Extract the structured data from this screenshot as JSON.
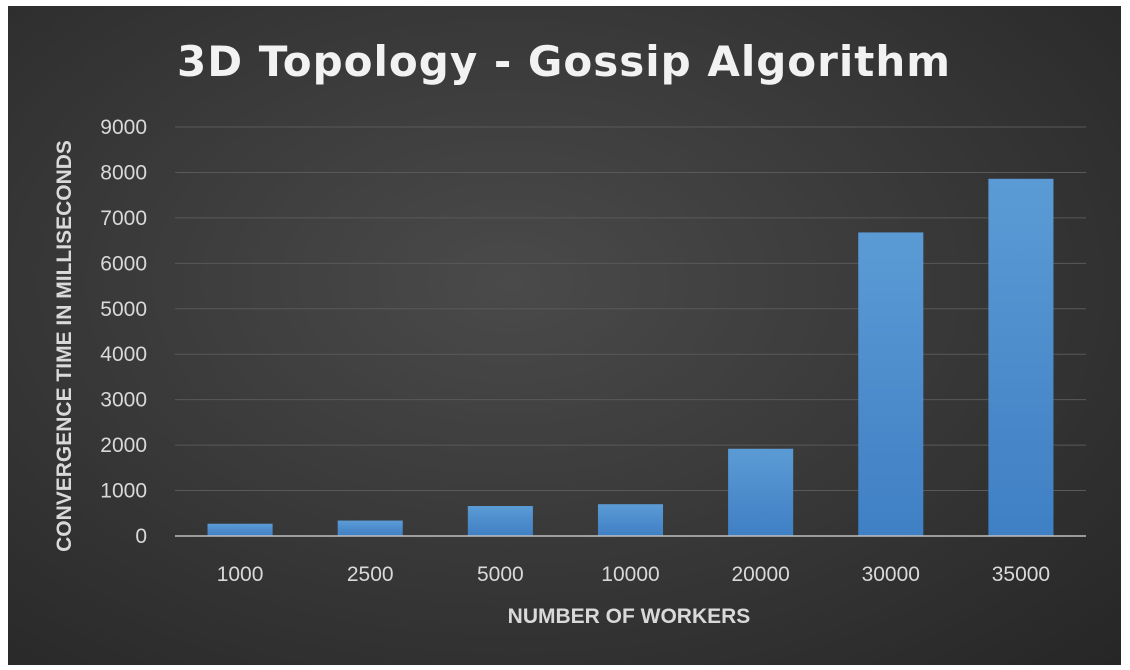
{
  "chart_data": {
    "type": "bar",
    "title": "3D Topology - Gossip Algorithm",
    "xlabel": "NUMBER OF WORKERS",
    "ylabel": "CONVERGENCE TIME IN MILLISECONDS",
    "categories": [
      "1000",
      "2500",
      "5000",
      "10000",
      "20000",
      "30000",
      "35000"
    ],
    "values": [
      270,
      340,
      660,
      700,
      1920,
      6680,
      7860
    ],
    "ylim": [
      0,
      9000
    ],
    "yticks": [
      0,
      1000,
      2000,
      3000,
      4000,
      5000,
      6000,
      7000,
      8000,
      9000
    ],
    "grid": true,
    "legend": "none",
    "colors": {
      "bar_top": "#5b9bd5",
      "bar_bottom": "#3f7fc4",
      "background": "#3a3a3a",
      "text": "#d9d9d9"
    }
  }
}
